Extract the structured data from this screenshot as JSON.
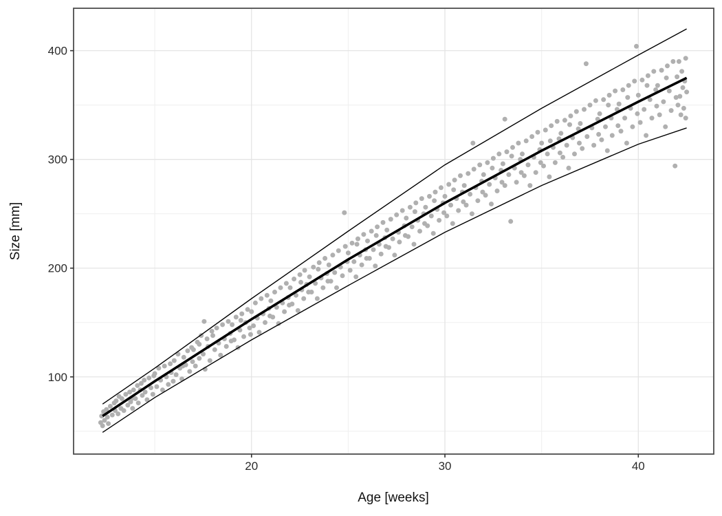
{
  "chart_data": {
    "type": "scatter",
    "title": "",
    "xlabel": "Age [weeks]",
    "ylabel": "Size [mm]",
    "x_domain": [
      10.8,
      43.9
    ],
    "y_domain": [
      29,
      439
    ],
    "x_ticks_major": [
      20,
      30,
      40
    ],
    "x_ticks_minor": [
      15,
      25,
      35
    ],
    "y_ticks_major": [
      100,
      200,
      300,
      400
    ],
    "y_ticks_minor": [
      50,
      150,
      250,
      350
    ],
    "legend": "none",
    "grid": "on",
    "style": {
      "point_color": "#b0b0b0",
      "point_radius": 3.5,
      "trend_color": "#000000",
      "trend_width": 3.6,
      "band_color": "#000000",
      "band_width": 1.4,
      "grid_major_color": "#e4e4e4",
      "grid_minor_color": "#f0f0f0",
      "panel_border_color": "#4d4d4d",
      "tick_color": "#333333",
      "tick_label_color": "#2b2b2b",
      "tick_label_size": 17
    },
    "center_line": [
      [
        12.3,
        64
      ],
      [
        15,
        96
      ],
      [
        20,
        153
      ],
      [
        25,
        208
      ],
      [
        30,
        260
      ],
      [
        35,
        308
      ],
      [
        40,
        353
      ],
      [
        42.5,
        375
      ]
    ],
    "upper_band_line": [
      [
        12.3,
        75
      ],
      [
        15,
        108
      ],
      [
        20,
        172
      ],
      [
        25,
        234
      ],
      [
        30,
        295
      ],
      [
        35,
        347
      ],
      [
        40,
        396
      ],
      [
        42.5,
        420
      ]
    ],
    "lower_band_line": [
      [
        12.3,
        49
      ],
      [
        15,
        81
      ],
      [
        20,
        134
      ],
      [
        25,
        184
      ],
      [
        30,
        233
      ],
      [
        35,
        276
      ],
      [
        40,
        314
      ],
      [
        42.5,
        329
      ]
    ],
    "points": [
      [
        12.2,
        58
      ],
      [
        12.25,
        64
      ],
      [
        12.3,
        55
      ],
      [
        12.35,
        68
      ],
      [
        12.4,
        60
      ],
      [
        12.5,
        70
      ],
      [
        12.55,
        63
      ],
      [
        12.6,
        57
      ],
      [
        12.7,
        73
      ],
      [
        12.8,
        65
      ],
      [
        12.9,
        76
      ],
      [
        12.95,
        69
      ],
      [
        13.0,
        78
      ],
      [
        13.1,
        66
      ],
      [
        13.15,
        82
      ],
      [
        13.25,
        71
      ],
      [
        13.3,
        80
      ],
      [
        13.4,
        69
      ],
      [
        13.5,
        84
      ],
      [
        13.6,
        74
      ],
      [
        13.7,
        86
      ],
      [
        13.75,
        77
      ],
      [
        13.8,
        80
      ],
      [
        13.85,
        71
      ],
      [
        13.9,
        88
      ],
      [
        14.0,
        80
      ],
      [
        14.1,
        92
      ],
      [
        14.15,
        76
      ],
      [
        14.25,
        88
      ],
      [
        14.3,
        94
      ],
      [
        14.35,
        83
      ],
      [
        14.45,
        97
      ],
      [
        14.5,
        86
      ],
      [
        14.6,
        79
      ],
      [
        14.7,
        99
      ],
      [
        14.8,
        90
      ],
      [
        14.9,
        84
      ],
      [
        14.95,
        101
      ],
      [
        15.0,
        103
      ],
      [
        15.1,
        91
      ],
      [
        15.2,
        108
      ],
      [
        15.3,
        97
      ],
      [
        15.4,
        88
      ],
      [
        15.5,
        110
      ],
      [
        15.6,
        100
      ],
      [
        15.7,
        93
      ],
      [
        15.8,
        112
      ],
      [
        15.85,
        104
      ],
      [
        15.95,
        96
      ],
      [
        16.0,
        115
      ],
      [
        16.1,
        102
      ],
      [
        16.2,
        121
      ],
      [
        16.3,
        108
      ],
      [
        16.4,
        98
      ],
      [
        16.45,
        110
      ],
      [
        16.5,
        118
      ],
      [
        16.6,
        111
      ],
      [
        16.7,
        124
      ],
      [
        16.8,
        105
      ],
      [
        16.9,
        127
      ],
      [
        16.95,
        114
      ],
      [
        17.0,
        125
      ],
      [
        17.1,
        110
      ],
      [
        17.2,
        132
      ],
      [
        17.3,
        130
      ],
      [
        17.3,
        117
      ],
      [
        17.4,
        138
      ],
      [
        17.5,
        121
      ],
      [
        17.55,
        151
      ],
      [
        17.6,
        107
      ],
      [
        17.7,
        135
      ],
      [
        17.75,
        128
      ],
      [
        17.85,
        115
      ],
      [
        17.95,
        142
      ],
      [
        18.0,
        138
      ],
      [
        18.1,
        125
      ],
      [
        18.2,
        145
      ],
      [
        18.3,
        131
      ],
      [
        18.4,
        120
      ],
      [
        18.5,
        148
      ],
      [
        18.6,
        135
      ],
      [
        18.7,
        128
      ],
      [
        18.8,
        151
      ],
      [
        18.9,
        140
      ],
      [
        18.95,
        133
      ],
      [
        19.0,
        148
      ],
      [
        19.1,
        134
      ],
      [
        19.2,
        155
      ],
      [
        19.3,
        127
      ],
      [
        19.4,
        143
      ],
      [
        19.45,
        152
      ],
      [
        19.5,
        158
      ],
      [
        19.6,
        137
      ],
      [
        19.7,
        150
      ],
      [
        19.8,
        162
      ],
      [
        19.9,
        145
      ],
      [
        19.95,
        139
      ],
      [
        20.0,
        160
      ],
      [
        20.1,
        147
      ],
      [
        20.2,
        168
      ],
      [
        20.3,
        154
      ],
      [
        20.4,
        141
      ],
      [
        20.5,
        172
      ],
      [
        20.6,
        158
      ],
      [
        20.7,
        150
      ],
      [
        20.8,
        175
      ],
      [
        20.9,
        163
      ],
      [
        20.95,
        156
      ],
      [
        21.0,
        170
      ],
      [
        21.1,
        155
      ],
      [
        21.2,
        178
      ],
      [
        21.3,
        164
      ],
      [
        21.4,
        149
      ],
      [
        21.5,
        182
      ],
      [
        21.6,
        168
      ],
      [
        21.7,
        160
      ],
      [
        21.8,
        186
      ],
      [
        21.9,
        173
      ],
      [
        21.95,
        166
      ],
      [
        22.0,
        182
      ],
      [
        22.1,
        167
      ],
      [
        22.2,
        190
      ],
      [
        22.3,
        175
      ],
      [
        22.4,
        161
      ],
      [
        22.5,
        194
      ],
      [
        22.55,
        187
      ],
      [
        22.6,
        180
      ],
      [
        22.7,
        172
      ],
      [
        22.75,
        198
      ],
      [
        22.85,
        185
      ],
      [
        22.95,
        178
      ],
      [
        23.0,
        192
      ],
      [
        23.1,
        178
      ],
      [
        23.2,
        201
      ],
      [
        23.3,
        186
      ],
      [
        23.4,
        172
      ],
      [
        23.45,
        199
      ],
      [
        23.5,
        205
      ],
      [
        23.6,
        191
      ],
      [
        23.7,
        182
      ],
      [
        23.8,
        209
      ],
      [
        23.9,
        195
      ],
      [
        23.95,
        188
      ],
      [
        24.0,
        203
      ],
      [
        24.1,
        188
      ],
      [
        24.2,
        212
      ],
      [
        24.3,
        196
      ],
      [
        24.4,
        182
      ],
      [
        24.5,
        216
      ],
      [
        24.6,
        201
      ],
      [
        24.7,
        193
      ],
      [
        24.8,
        251
      ],
      [
        24.85,
        220
      ],
      [
        24.95,
        206
      ],
      [
        25.0,
        214
      ],
      [
        25.1,
        198
      ],
      [
        25.2,
        223
      ],
      [
        25.3,
        206
      ],
      [
        25.4,
        192
      ],
      [
        25.45,
        222
      ],
      [
        25.5,
        227
      ],
      [
        25.6,
        212
      ],
      [
        25.7,
        203
      ],
      [
        25.8,
        231
      ],
      [
        25.9,
        217
      ],
      [
        25.95,
        209
      ],
      [
        26.0,
        225
      ],
      [
        26.1,
        209
      ],
      [
        26.2,
        234
      ],
      [
        26.3,
        217
      ],
      [
        26.4,
        202
      ],
      [
        26.45,
        230
      ],
      [
        26.5,
        238
      ],
      [
        26.6,
        222
      ],
      [
        26.7,
        213
      ],
      [
        26.8,
        242
      ],
      [
        26.9,
        228
      ],
      [
        26.95,
        220
      ],
      [
        27.0,
        235
      ],
      [
        27.1,
        219
      ],
      [
        27.2,
        245
      ],
      [
        27.3,
        227
      ],
      [
        27.4,
        212
      ],
      [
        27.5,
        249
      ],
      [
        27.6,
        233
      ],
      [
        27.65,
        224
      ],
      [
        27.8,
        253
      ],
      [
        27.9,
        239
      ],
      [
        27.95,
        230
      ],
      [
        28.0,
        246
      ],
      [
        28.1,
        229
      ],
      [
        28.2,
        256
      ],
      [
        28.3,
        238
      ],
      [
        28.4,
        222
      ],
      [
        28.45,
        252
      ],
      [
        28.5,
        260
      ],
      [
        28.6,
        244
      ],
      [
        28.7,
        234
      ],
      [
        28.8,
        264
      ],
      [
        28.9,
        250
      ],
      [
        28.95,
        241
      ],
      [
        29.0,
        256
      ],
      [
        29.1,
        239
      ],
      [
        29.2,
        266
      ],
      [
        29.3,
        248
      ],
      [
        29.4,
        232
      ],
      [
        29.45,
        262
      ],
      [
        29.5,
        270
      ],
      [
        29.6,
        254
      ],
      [
        29.7,
        244
      ],
      [
        29.8,
        274
      ],
      [
        29.9,
        260
      ],
      [
        29.95,
        251
      ],
      [
        30.0,
        266
      ],
      [
        30.1,
        248
      ],
      [
        30.2,
        277
      ],
      [
        30.3,
        258
      ],
      [
        30.4,
        241
      ],
      [
        30.45,
        272
      ],
      [
        30.5,
        281
      ],
      [
        30.6,
        264
      ],
      [
        30.7,
        253
      ],
      [
        30.8,
        285
      ],
      [
        30.9,
        270
      ],
      [
        30.95,
        261
      ],
      [
        31.0,
        276
      ],
      [
        31.1,
        258
      ],
      [
        31.2,
        287
      ],
      [
        31.3,
        268
      ],
      [
        31.4,
        250
      ],
      [
        31.45,
        315
      ],
      [
        31.5,
        291
      ],
      [
        31.6,
        274
      ],
      [
        31.7,
        262
      ],
      [
        31.8,
        295
      ],
      [
        31.9,
        280
      ],
      [
        31.95,
        270
      ],
      [
        32.0,
        286
      ],
      [
        32.1,
        267
      ],
      [
        32.2,
        297
      ],
      [
        32.3,
        277
      ],
      [
        32.4,
        259
      ],
      [
        32.45,
        292
      ],
      [
        32.5,
        301
      ],
      [
        32.6,
        283
      ],
      [
        32.7,
        271
      ],
      [
        32.8,
        305
      ],
      [
        32.9,
        290
      ],
      [
        32.95,
        279
      ],
      [
        33.0,
        296
      ],
      [
        33.1,
        337
      ],
      [
        33.1,
        276
      ],
      [
        33.2,
        307
      ],
      [
        33.3,
        286
      ],
      [
        33.4,
        243
      ],
      [
        33.45,
        303
      ],
      [
        33.5,
        311
      ],
      [
        33.6,
        292
      ],
      [
        33.7,
        279
      ],
      [
        33.8,
        315
      ],
      [
        33.9,
        300
      ],
      [
        33.95,
        288
      ],
      [
        34.0,
        305
      ],
      [
        34.1,
        285
      ],
      [
        34.2,
        317
      ],
      [
        34.3,
        295
      ],
      [
        34.4,
        276
      ],
      [
        34.5,
        321
      ],
      [
        34.6,
        302
      ],
      [
        34.7,
        288
      ],
      [
        34.8,
        325
      ],
      [
        34.9,
        309
      ],
      [
        34.95,
        297
      ],
      [
        35.0,
        315
      ],
      [
        35.1,
        294
      ],
      [
        35.2,
        327
      ],
      [
        35.3,
        305
      ],
      [
        35.4,
        284
      ],
      [
        35.45,
        317
      ],
      [
        35.5,
        331
      ],
      [
        35.6,
        311
      ],
      [
        35.7,
        297
      ],
      [
        35.8,
        335
      ],
      [
        35.9,
        319
      ],
      [
        35.95,
        306
      ],
      [
        36.0,
        324
      ],
      [
        36.1,
        302
      ],
      [
        36.2,
        336
      ],
      [
        36.3,
        313
      ],
      [
        36.4,
        292
      ],
      [
        36.45,
        332
      ],
      [
        36.5,
        340
      ],
      [
        36.6,
        320
      ],
      [
        36.7,
        305
      ],
      [
        36.8,
        344
      ],
      [
        36.9,
        328
      ],
      [
        36.95,
        315
      ],
      [
        37.0,
        333
      ],
      [
        37.1,
        310
      ],
      [
        37.2,
        346
      ],
      [
        37.3,
        388
      ],
      [
        37.35,
        321
      ],
      [
        37.5,
        350
      ],
      [
        37.6,
        329
      ],
      [
        37.7,
        313
      ],
      [
        37.8,
        354
      ],
      [
        37.9,
        337
      ],
      [
        37.95,
        323
      ],
      [
        38.0,
        342
      ],
      [
        38.1,
        318
      ],
      [
        38.2,
        355
      ],
      [
        38.3,
        330
      ],
      [
        38.4,
        308
      ],
      [
        38.45,
        350
      ],
      [
        38.5,
        359
      ],
      [
        38.6,
        338
      ],
      [
        38.65,
        322
      ],
      [
        38.8,
        363
      ],
      [
        38.9,
        346
      ],
      [
        38.95,
        331
      ],
      [
        39.0,
        351
      ],
      [
        39.1,
        326
      ],
      [
        39.2,
        364
      ],
      [
        39.3,
        338
      ],
      [
        39.4,
        315
      ],
      [
        39.45,
        357
      ],
      [
        39.5,
        368
      ],
      [
        39.6,
        347
      ],
      [
        39.7,
        330
      ],
      [
        39.8,
        372
      ],
      [
        39.9,
        404
      ],
      [
        39.95,
        342
      ],
      [
        40.0,
        359
      ],
      [
        40.1,
        334
      ],
      [
        40.2,
        373
      ],
      [
        40.3,
        346
      ],
      [
        40.4,
        322
      ],
      [
        40.45,
        368
      ],
      [
        40.5,
        377
      ],
      [
        40.6,
        355
      ],
      [
        40.7,
        338
      ],
      [
        40.8,
        381
      ],
      [
        40.9,
        364
      ],
      [
        40.95,
        349
      ],
      [
        41.0,
        368
      ],
      [
        41.1,
        341
      ],
      [
        41.2,
        382
      ],
      [
        41.3,
        353
      ],
      [
        41.4,
        330
      ],
      [
        41.45,
        375
      ],
      [
        41.5,
        386
      ],
      [
        41.6,
        363
      ],
      [
        41.7,
        345
      ],
      [
        41.8,
        390
      ],
      [
        41.9,
        294
      ],
      [
        41.95,
        357
      ],
      [
        42.0,
        376
      ],
      [
        42.05,
        350
      ],
      [
        42.1,
        390
      ],
      [
        42.15,
        358
      ],
      [
        42.2,
        341
      ],
      [
        42.25,
        381
      ],
      [
        42.3,
        366
      ],
      [
        42.35,
        347
      ],
      [
        42.4,
        372
      ],
      [
        42.45,
        338
      ],
      [
        42.45,
        393
      ],
      [
        42.5,
        362
      ]
    ]
  }
}
